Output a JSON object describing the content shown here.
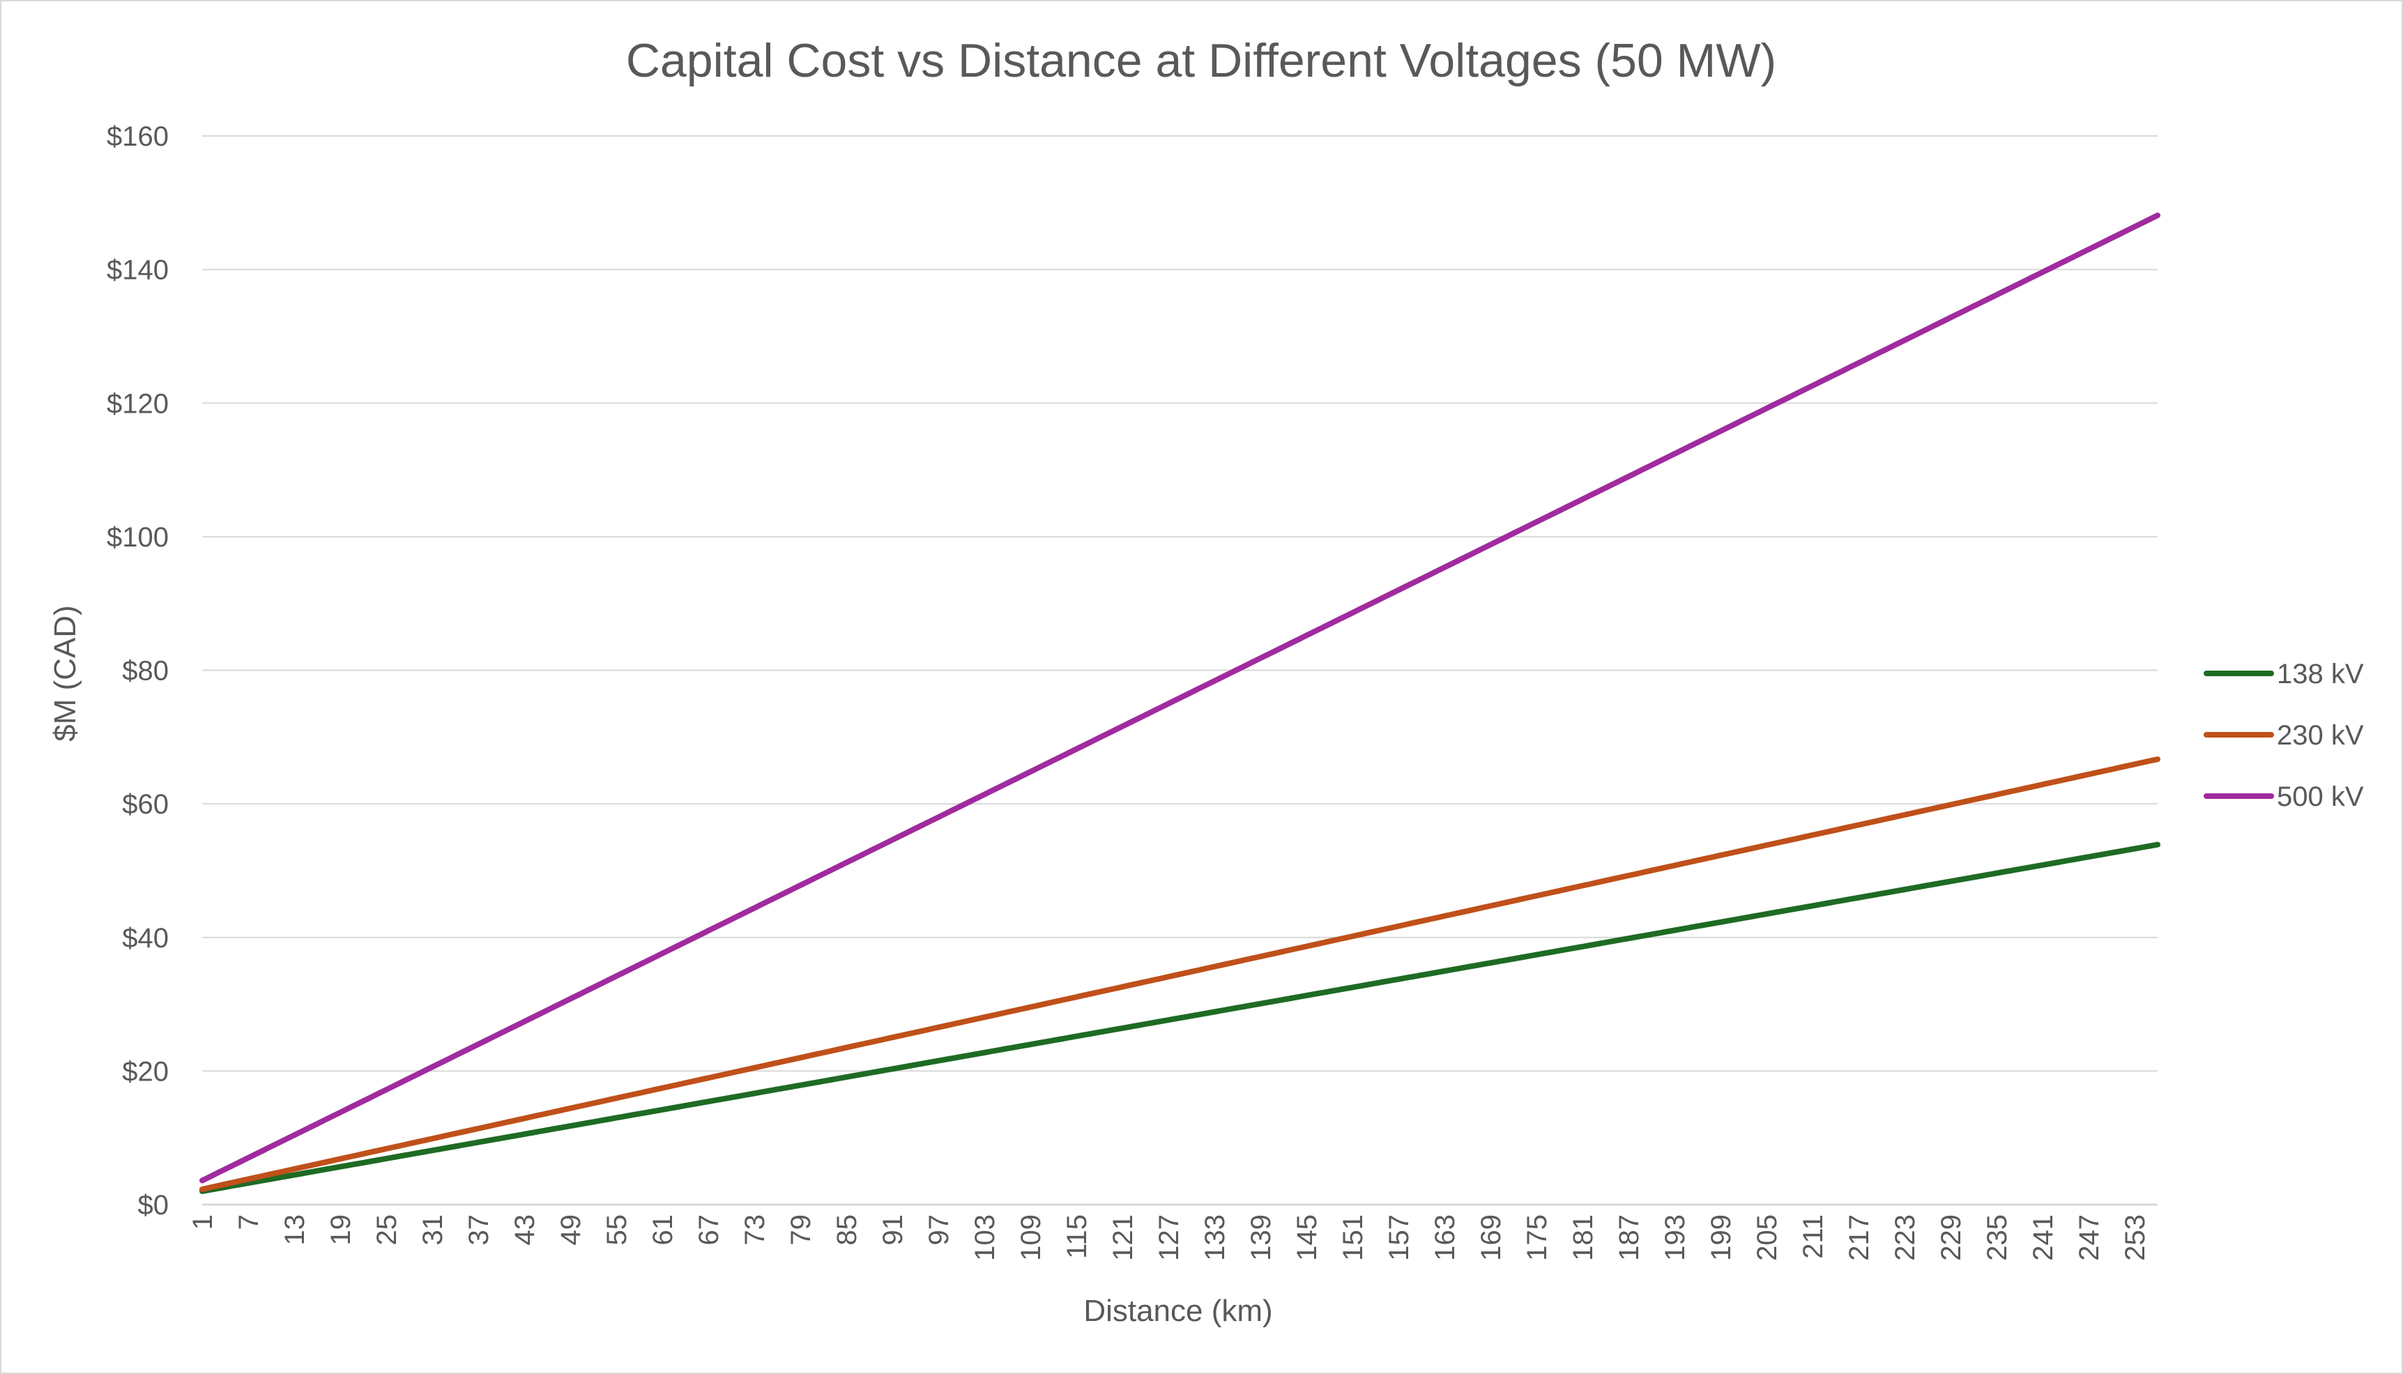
{
  "chart_data": {
    "type": "line",
    "title": "Capital Cost vs Distance at Different Voltages (50 MW)",
    "xlabel": "Distance (km)",
    "ylabel": "$M (CAD)",
    "x_start": 1,
    "x_end": 256,
    "x_tick_labels": [
      "1",
      "7",
      "13",
      "19",
      "25",
      "31",
      "37",
      "43",
      "49",
      "55",
      "61",
      "67",
      "73",
      "79",
      "85",
      "91",
      "97",
      "103",
      "109",
      "115",
      "121",
      "127",
      "133",
      "139",
      "145",
      "151",
      "157",
      "163",
      "169",
      "175",
      "181",
      "187",
      "193",
      "199",
      "205",
      "211",
      "217",
      "223",
      "229",
      "235",
      "241",
      "247",
      "253"
    ],
    "y_tick_labels": [
      "$0",
      "$20",
      "$40",
      "$60",
      "$80",
      "$100",
      "$120",
      "$140",
      "$160"
    ],
    "ylim": [
      0,
      160
    ],
    "grid": true,
    "legend_position": "right",
    "series": [
      {
        "name": "138 kV",
        "color": "#1e6b24",
        "start": 2.0,
        "per_km": 0.2035
      },
      {
        "name": "230 kV",
        "color": "#c0501a",
        "start": 2.3,
        "per_km": 0.2525
      },
      {
        "name": "500 kV",
        "color": "#a02b9e",
        "start": 3.6,
        "per_km": 0.5667
      }
    ]
  }
}
